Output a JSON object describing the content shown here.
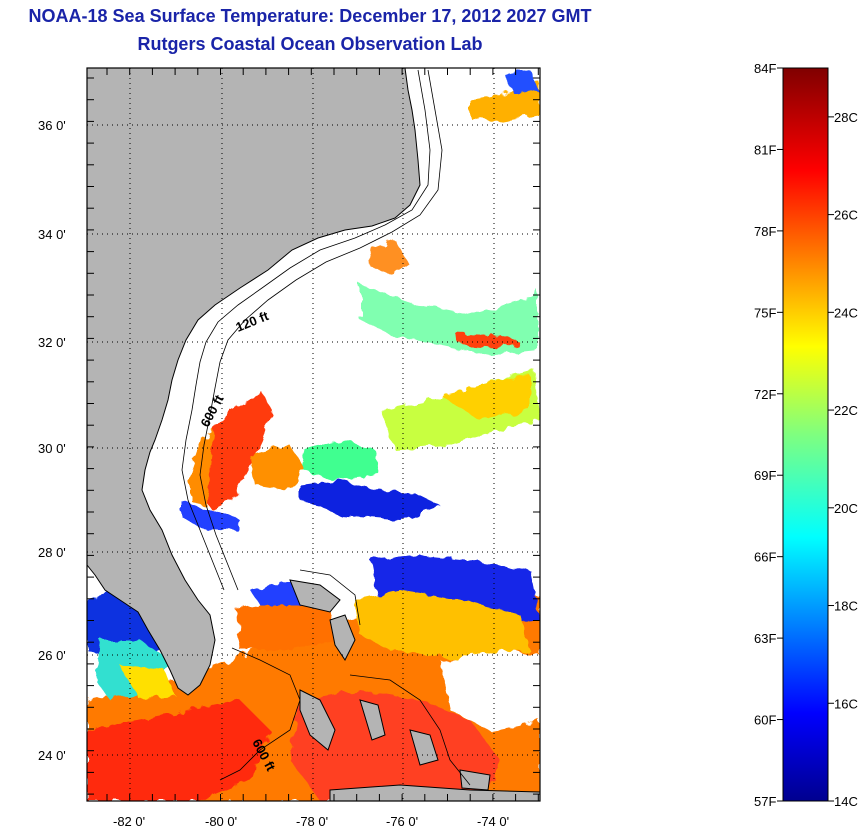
{
  "header": {
    "title": "NOAA-18 Sea Surface Temperature:  December 17, 2012 2027 GMT",
    "subtitle": "Rutgers Coastal Ocean Observation Lab"
  },
  "map": {
    "lon_range": [
      -83,
      -73
    ],
    "lat_range": [
      23,
      37
    ],
    "lat_ticks": [
      {
        "value": 36,
        "label": "36 0'"
      },
      {
        "value": 34,
        "label": "34 0'"
      },
      {
        "value": 32,
        "label": "32 0'"
      },
      {
        "value": 30,
        "label": "30 0'"
      },
      {
        "value": 28,
        "label": "28 0'"
      },
      {
        "value": 26,
        "label": "26 0'"
      },
      {
        "value": 24,
        "label": "24 0'"
      }
    ],
    "lon_ticks": [
      {
        "value": -82,
        "label": "-82 0'"
      },
      {
        "value": -80,
        "label": "-80 0'"
      },
      {
        "value": -78,
        "label": "-78 0'"
      },
      {
        "value": -76,
        "label": "-76 0'"
      },
      {
        "value": -74,
        "label": "-74 0'"
      }
    ],
    "contour_labels": [
      {
        "text": "120 ft"
      },
      {
        "text": "600 ft"
      },
      {
        "text": "600 ft"
      }
    ],
    "colors": {
      "land": "#b4b4b4",
      "ocean_no_data": "#ffffff",
      "coastline": "#000000",
      "grid": "#000000"
    }
  },
  "colorbar": {
    "fahrenheit_labels": [
      "84F",
      "81F",
      "78F",
      "75F",
      "72F",
      "69F",
      "66F",
      "63F",
      "60F",
      "57F"
    ],
    "celsius_labels": [
      "28C",
      "26C",
      "24C",
      "22C",
      "20C",
      "18C",
      "16C",
      "14C"
    ],
    "range_c": [
      14,
      29
    ],
    "colormap": "jet"
  }
}
